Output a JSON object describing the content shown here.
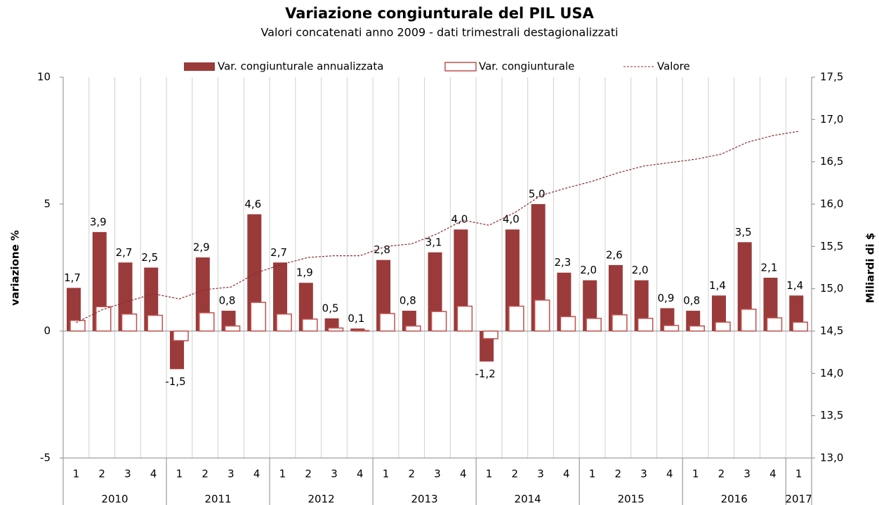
{
  "chart_data": {
    "type": "bar",
    "title": "Variazione congiunturale del PIL USA",
    "subtitle": "Valori concatenati anno 2009 - dati trimestrali destagionalizzati",
    "y_label": "variazione %",
    "y2_label": "Miliardi di $",
    "categories": [
      "1",
      "2",
      "3",
      "4",
      "1",
      "2",
      "3",
      "4",
      "1",
      "2",
      "3",
      "4",
      "1",
      "2",
      "3",
      "4",
      "1",
      "2",
      "3",
      "4",
      "1",
      "2",
      "3",
      "4",
      "1",
      "2",
      "3",
      "4",
      "1"
    ],
    "years": [
      "2010",
      "2011",
      "2012",
      "2013",
      "2014",
      "2015",
      "2016",
      "2017"
    ],
    "ylim": [
      -5,
      10
    ],
    "yticks": [
      -5,
      0,
      5,
      10
    ],
    "y2lim": [
      13,
      17.5
    ],
    "y2ticks": [
      {
        "value": 13,
        "label": "13,0"
      },
      {
        "value": 13.5,
        "label": "13,5"
      },
      {
        "value": 14,
        "label": "14,0"
      },
      {
        "value": 14.5,
        "label": "14,5"
      },
      {
        "value": 15,
        "label": "15,0"
      },
      {
        "value": 15.5,
        "label": "15,5"
      },
      {
        "value": 16,
        "label": "16,0"
      },
      {
        "value": 16.5,
        "label": "16,5"
      },
      {
        "value": 17,
        "label": "17,0"
      },
      {
        "value": 17.5,
        "label": "17,5"
      }
    ],
    "grid": true,
    "series": [
      {
        "name": "Var. congiunturale annualizzata",
        "type": "bar",
        "color": "#9b3a3a",
        "values": [
          1.7,
          3.9,
          2.7,
          2.5,
          -1.5,
          2.9,
          0.8,
          4.6,
          2.7,
          1.9,
          0.5,
          0.1,
          2.8,
          0.8,
          3.1,
          4.0,
          -1.2,
          4.0,
          5.0,
          2.3,
          2.0,
          2.6,
          2.0,
          0.9,
          0.8,
          1.4,
          3.5,
          2.1,
          1.4
        ],
        "value_labels": [
          "1,7",
          "3,9",
          "2,7",
          "2,5",
          "-1,5",
          "2,9",
          "0,8",
          "4,6",
          "2,7",
          "1,9",
          "0,5",
          "0,1",
          "2,8",
          "0,8",
          "3,1",
          "4,0",
          "-1,2",
          "4,0",
          "5,0",
          "2,3",
          "2,0",
          "2,6",
          "2,0",
          "0,9",
          "0,8",
          "1,4",
          "3,5",
          "2,1",
          "1,4"
        ]
      },
      {
        "name": "Var. congiunturale",
        "type": "bar",
        "color": "#c0504d",
        "values": [
          0.42,
          0.96,
          0.67,
          0.62,
          -0.38,
          0.72,
          0.2,
          1.13,
          0.67,
          0.47,
          0.12,
          0.02,
          0.69,
          0.2,
          0.77,
          0.98,
          -0.3,
          0.98,
          1.22,
          0.57,
          0.5,
          0.64,
          0.5,
          0.22,
          0.2,
          0.35,
          0.86,
          0.52,
          0.35
        ]
      },
      {
        "name": "Valore",
        "type": "line",
        "axis": "y2",
        "color": "#8b2c2c",
        "values": [
          14.6,
          14.75,
          14.85,
          14.94,
          14.88,
          14.99,
          15.02,
          15.19,
          15.29,
          15.37,
          15.39,
          15.39,
          15.5,
          15.53,
          15.65,
          15.81,
          15.75,
          15.9,
          16.1,
          16.19,
          16.27,
          16.37,
          16.45,
          16.49,
          16.53,
          16.59,
          16.73,
          16.81,
          16.86
        ]
      }
    ]
  }
}
